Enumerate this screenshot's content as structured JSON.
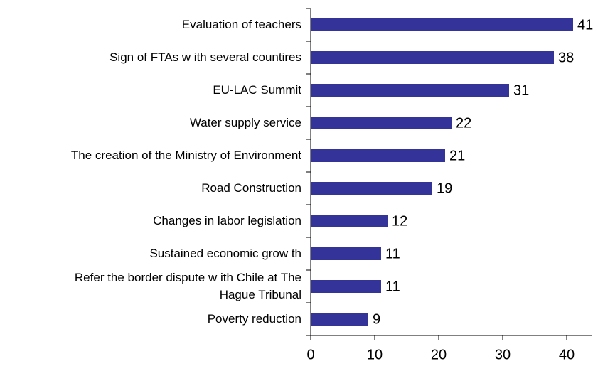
{
  "chart_data": {
    "type": "barh",
    "categories": [
      "Evaluation of teachers",
      "Sign of FTAs w ith several countires",
      "EU-LAC Summit",
      "Water supply service",
      "The creation of the Ministry of Environment",
      "Road Construction",
      "Changes in labor legislation",
      "Sustained economic grow th",
      "Refer the border dispute w ith Chile at The\nHague Tribunal",
      "Poverty reduction"
    ],
    "values": [
      41,
      38,
      31,
      22,
      21,
      19,
      12,
      11,
      11,
      9
    ],
    "color": "#333399",
    "xlim": [
      0,
      44
    ],
    "xticks": [
      0,
      10,
      20,
      30,
      40
    ],
    "grid": false
  }
}
